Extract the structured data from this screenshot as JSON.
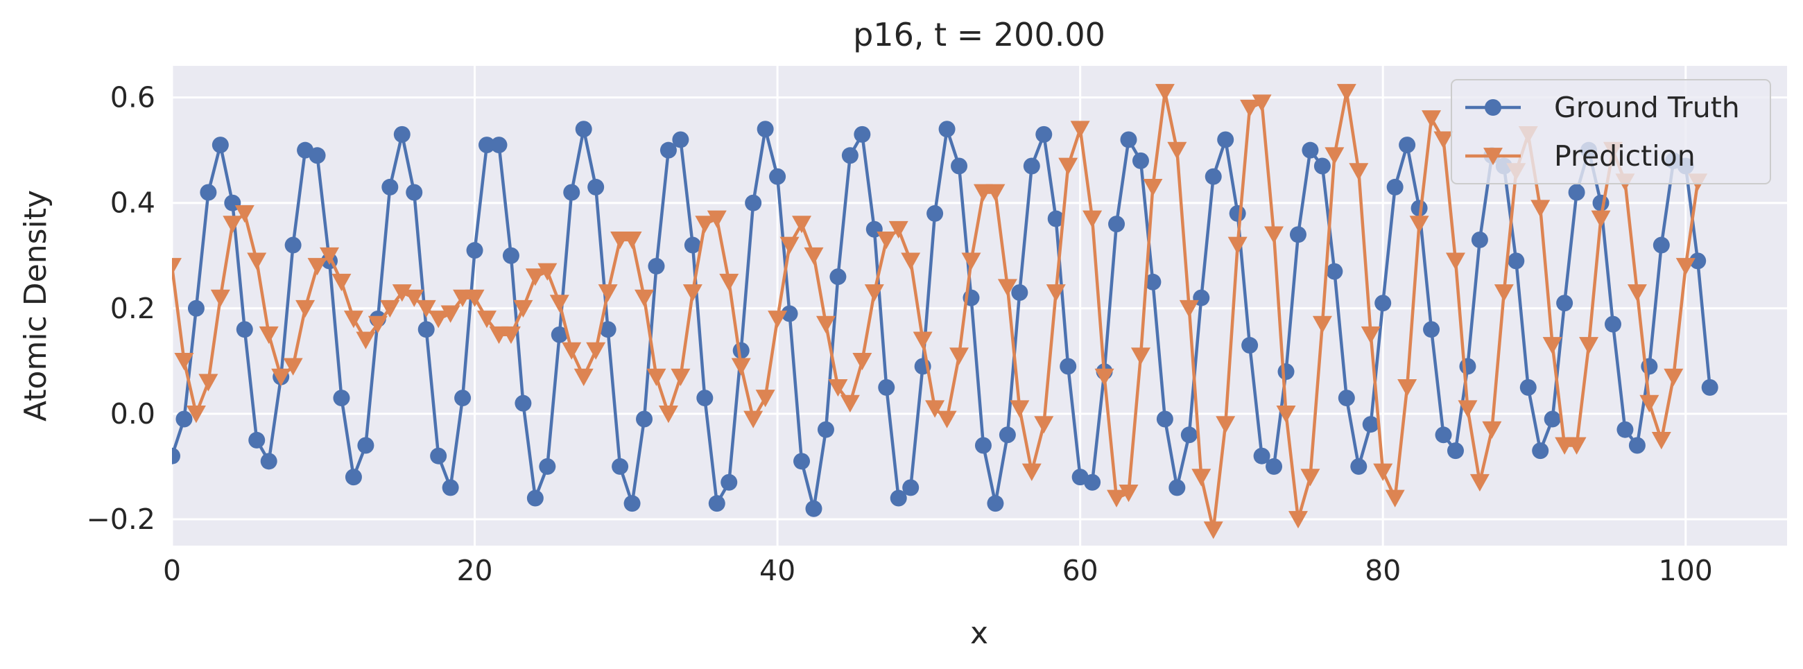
{
  "chart_data": {
    "type": "line",
    "title": "p16, t = 200.00",
    "xlabel": "x",
    "ylabel": "Atomic Density",
    "xlim": [
      0,
      106.7
    ],
    "ylim": [
      -0.25,
      0.66
    ],
    "xticks": [
      0,
      20,
      40,
      60,
      80,
      100
    ],
    "yticks": [
      -0.2,
      0.0,
      0.2,
      0.4,
      0.6
    ],
    "ytick_labels": [
      "−0.2",
      "0.0",
      "0.2",
      "0.4",
      "0.6"
    ],
    "grid": true,
    "legend_position": "top-right",
    "x_step": 0.8,
    "series": [
      {
        "name": "Ground Truth",
        "color": "#4c72b0",
        "marker": "circle",
        "values": [
          -0.08,
          -0.01,
          0.2,
          0.42,
          0.51,
          0.4,
          0.16,
          -0.05,
          -0.09,
          0.07,
          0.32,
          0.5,
          0.49,
          0.29,
          0.03,
          -0.12,
          -0.06,
          0.18,
          0.43,
          0.53,
          0.42,
          0.16,
          -0.08,
          -0.14,
          0.03,
          0.31,
          0.51,
          0.51,
          0.3,
          0.02,
          -0.16,
          -0.1,
          0.15,
          0.42,
          0.54,
          0.43,
          0.16,
          -0.1,
          -0.17,
          -0.01,
          0.28,
          0.5,
          0.52,
          0.32,
          0.03,
          -0.17,
          -0.13,
          0.12,
          0.4,
          0.54,
          0.45,
          0.19,
          -0.09,
          -0.18,
          -0.03,
          0.26,
          0.49,
          0.53,
          0.35,
          0.05,
          -0.16,
          -0.14,
          0.09,
          0.38,
          0.54,
          0.47,
          0.22,
          -0.06,
          -0.17,
          -0.04,
          0.23,
          0.47,
          0.53,
          0.37,
          0.09,
          -0.12,
          -0.13,
          0.08,
          0.36,
          0.52,
          0.48,
          0.25,
          -0.01,
          -0.14,
          -0.04,
          0.22,
          0.45,
          0.52,
          0.38,
          0.13,
          -0.08,
          -0.1,
          0.08,
          0.34,
          0.5,
          0.47,
          0.27,
          0.03,
          -0.1,
          -0.02,
          0.21,
          0.43,
          0.51,
          0.39,
          0.16,
          -0.04,
          -0.07,
          0.09,
          0.33,
          0.49,
          0.47,
          0.29,
          0.05,
          -0.07,
          -0.01,
          0.21,
          0.42,
          0.5,
          0.4,
          0.17,
          -0.03,
          -0.06,
          0.09,
          0.32,
          0.48,
          0.47,
          0.29,
          0.05
        ]
      },
      {
        "name": "Prediction",
        "color": "#dd8452",
        "marker": "triangle-down",
        "values": [
          0.28,
          0.1,
          0.0,
          0.06,
          0.22,
          0.36,
          0.38,
          0.29,
          0.15,
          0.07,
          0.09,
          0.2,
          0.28,
          0.3,
          0.25,
          0.18,
          0.14,
          0.17,
          0.2,
          0.23,
          0.22,
          0.2,
          0.18,
          0.19,
          0.22,
          0.22,
          0.18,
          0.15,
          0.15,
          0.2,
          0.26,
          0.27,
          0.21,
          0.12,
          0.07,
          0.12,
          0.23,
          0.33,
          0.33,
          0.22,
          0.07,
          0.0,
          0.07,
          0.23,
          0.36,
          0.37,
          0.25,
          0.09,
          -0.01,
          0.03,
          0.18,
          0.32,
          0.36,
          0.3,
          0.17,
          0.05,
          0.02,
          0.1,
          0.23,
          0.33,
          0.35,
          0.29,
          0.14,
          0.01,
          -0.01,
          0.11,
          0.29,
          0.42,
          0.42,
          0.24,
          0.01,
          -0.11,
          -0.02,
          0.23,
          0.47,
          0.54,
          0.37,
          0.07,
          -0.16,
          -0.15,
          0.11,
          0.43,
          0.61,
          0.5,
          0.2,
          -0.12,
          -0.22,
          -0.02,
          0.32,
          0.58,
          0.59,
          0.34,
          0.0,
          -0.2,
          -0.12,
          0.17,
          0.49,
          0.61,
          0.46,
          0.15,
          -0.11,
          -0.16,
          0.05,
          0.36,
          0.56,
          0.52,
          0.29,
          0.01,
          -0.13,
          -0.03,
          0.23,
          0.46,
          0.53,
          0.39,
          0.13,
          -0.06,
          -0.06,
          0.13,
          0.37,
          0.5,
          0.44,
          0.23,
          0.02,
          -0.05,
          0.07,
          0.28,
          0.44
        ]
      }
    ]
  }
}
